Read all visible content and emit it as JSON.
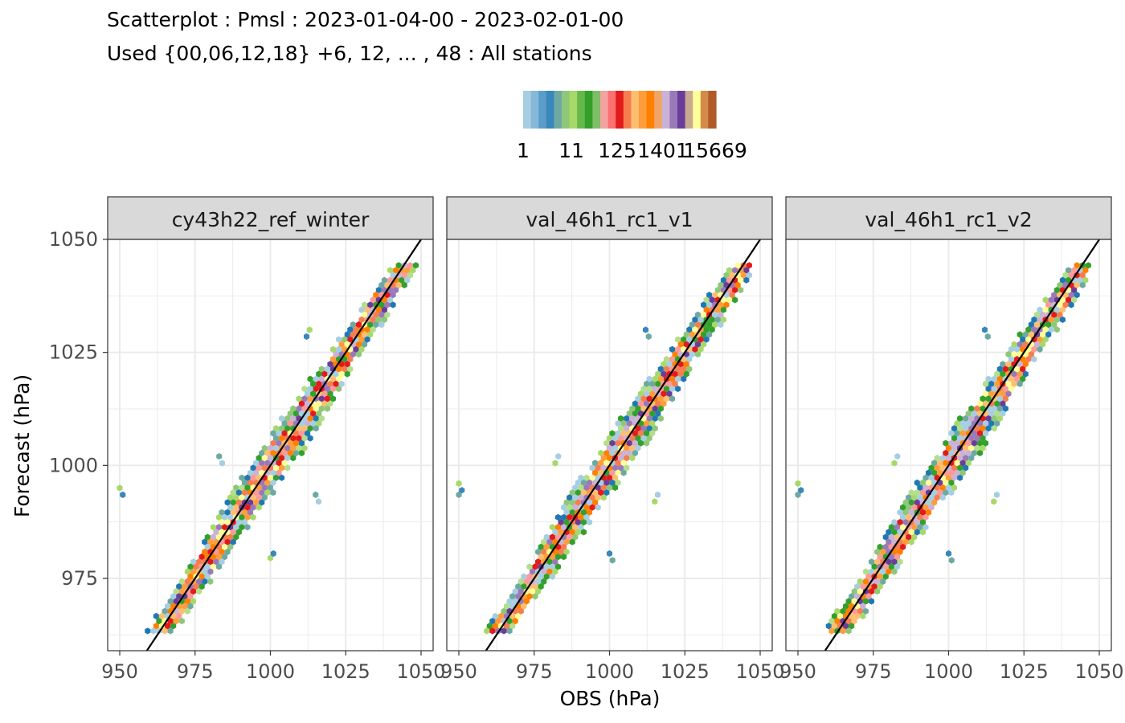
{
  "title_line1": "Scatterplot : Pmsl : 2023-01-04-00 - 2023-02-01-00",
  "title_line2": "Used {00,06,12,18} +6, 12, ... , 48 : All stations",
  "palette": [
    "#a6cee3",
    "#86b9d8",
    "#5b9dc9",
    "#3a87bb",
    "#6da9a2",
    "#8fc779",
    "#a6d96a",
    "#66b84a",
    "#33a02c",
    "#7ebe65",
    "#f4a3a3",
    "#fb7070",
    "#e31a1c",
    "#f57d4f",
    "#fdbf6f",
    "#fe9d3a",
    "#ff7f00",
    "#f0a568",
    "#cab2d6",
    "#9a79b8",
    "#6a3d9a",
    "#c9a98f",
    "#ffff99",
    "#d48a4a",
    "#b15928"
  ],
  "chart_data": {
    "type": "hexbin-scatter",
    "title": "Scatterplot : Pmsl : 2023-01-04-00 - 2023-02-01-00",
    "subtitle": "Used {00,06,12,18} +6, 12, ... , 48 : All stations",
    "xlabel": "OBS (hPa)",
    "ylabel": "Forecast (hPa)",
    "xlim": [
      946,
      1054
    ],
    "ylim": [
      959,
      1050
    ],
    "x_ticks": [
      950,
      975,
      1000,
      1025,
      1050
    ],
    "y_ticks": [
      975,
      1000,
      1025,
      1050
    ],
    "legend": {
      "position": "top",
      "labels": [
        "1",
        "11",
        "125",
        "1401",
        "15669"
      ]
    },
    "reference_line": "y = x",
    "panels": [
      {
        "name": "cy43h22_ref_winter",
        "outliers": [
          [
            950,
            995
          ],
          [
            951,
            993.5
          ],
          [
            983,
            1002
          ],
          [
            984,
            1000.5
          ],
          [
            1000,
            979.5
          ],
          [
            1001,
            980.5
          ],
          [
            1015,
            993.5
          ],
          [
            1016,
            992
          ],
          [
            1013,
            1030
          ],
          [
            1012,
            1028.5
          ]
        ]
      },
      {
        "name": "val_46h1_rc1_v1",
        "outliers": [
          [
            950,
            996
          ],
          [
            951,
            994.5
          ],
          [
            950,
            993.5
          ],
          [
            983,
            1002
          ],
          [
            982,
            1000.5
          ],
          [
            1000,
            980.5
          ],
          [
            1001,
            979
          ],
          [
            1016,
            993.5
          ],
          [
            1015,
            992
          ],
          [
            1012,
            1030
          ],
          [
            1013,
            1028.5
          ]
        ]
      },
      {
        "name": "val_46h1_rc1_v2",
        "outliers": [
          [
            950,
            996
          ],
          [
            951,
            994.5
          ],
          [
            950,
            993.5
          ],
          [
            983,
            1002
          ],
          [
            982,
            1000.5
          ],
          [
            1000,
            980.5
          ],
          [
            1001,
            979
          ],
          [
            1016,
            993.5
          ],
          [
            1015,
            992
          ],
          [
            1012,
            1030
          ],
          [
            1013,
            1028.5
          ]
        ]
      }
    ]
  }
}
